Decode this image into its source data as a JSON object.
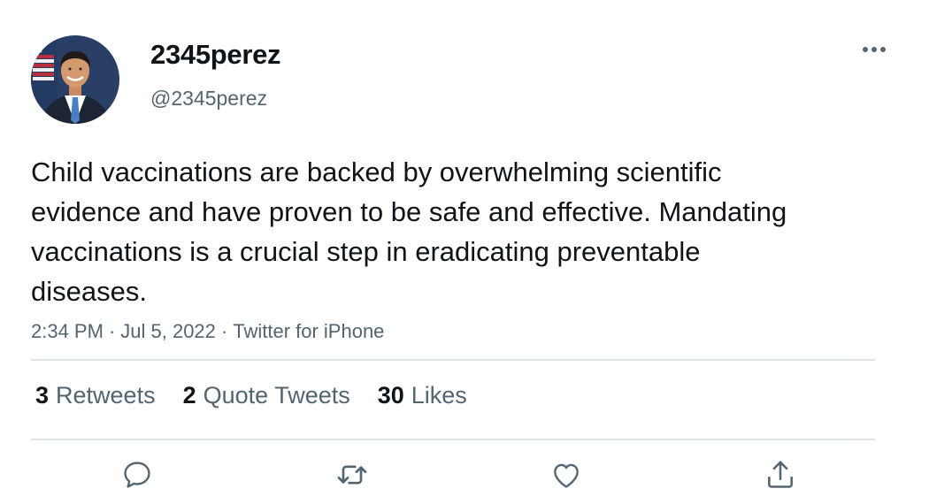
{
  "user": {
    "display_name": "2345perez",
    "handle": "@2345perez",
    "avatar_icon": "profile-photo"
  },
  "tweet": {
    "text": "Child vaccinations are backed by overwhelming scientific evidence and have proven to be safe and effective. Mandating vaccinations is a crucial step in eradicating preventable diseases.",
    "time": "2:34 PM",
    "date": "Jul 5, 2022",
    "source": "Twitter for iPhone",
    "separator": "·"
  },
  "stats": {
    "retweets": {
      "count": "3",
      "label": "Retweets"
    },
    "quotes": {
      "count": "2",
      "label": "Quote Tweets"
    },
    "likes": {
      "count": "30",
      "label": "Likes"
    }
  },
  "actions": {
    "more_icon": "more-horizontal-icon",
    "reply_icon": "reply-icon",
    "retweet_icon": "retweet-icon",
    "like_icon": "heart-icon",
    "share_icon": "share-icon"
  },
  "colors": {
    "text": "#0f1419",
    "secondary": "#536471",
    "divider": "#dfe3e6",
    "background": "#ffffff"
  }
}
